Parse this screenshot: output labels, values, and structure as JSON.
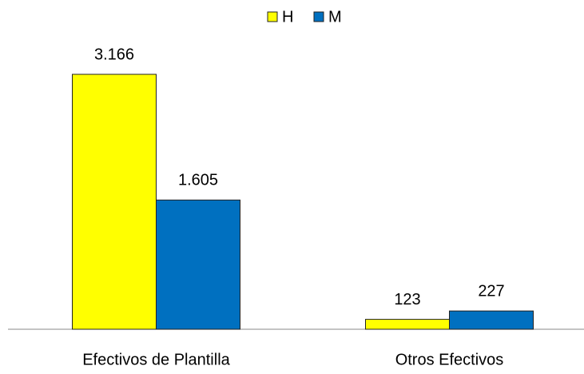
{
  "chart_data": {
    "type": "bar",
    "categories": [
      "Efectivos de Plantilla",
      "Otros Efectivos"
    ],
    "series": [
      {
        "name": "H",
        "color": "#ffff00",
        "values": [
          3166,
          123
        ],
        "value_labels": [
          "3.166",
          "123"
        ]
      },
      {
        "name": "M",
        "color": "#0070c0",
        "values": [
          1605,
          227
        ],
        "value_labels": [
          "1.605",
          "227"
        ]
      }
    ],
    "legend": "top"
  }
}
